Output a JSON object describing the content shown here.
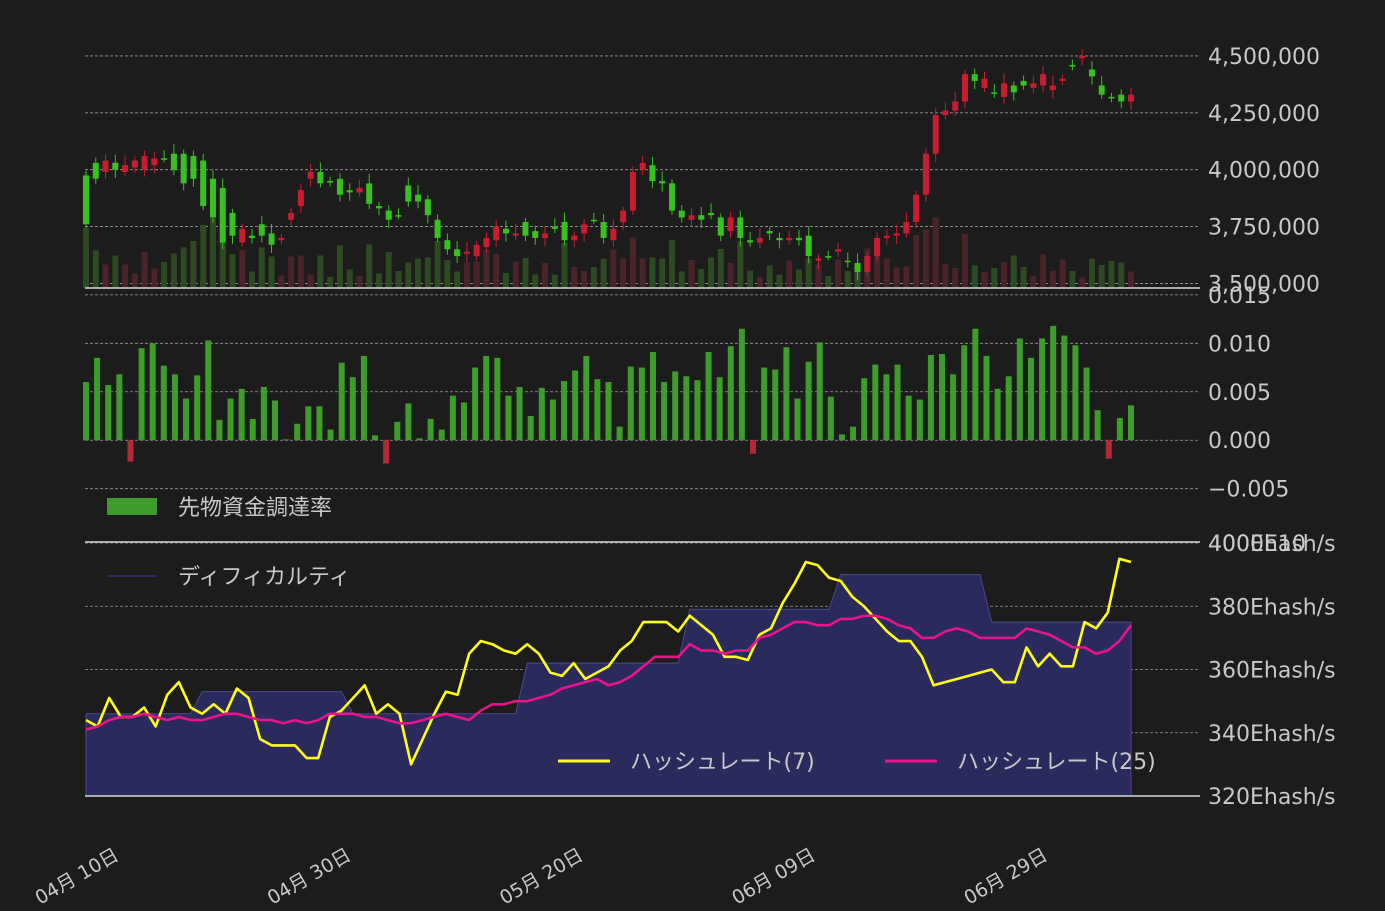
{
  "chart_data": [
    {
      "type": "candlestick",
      "panel": "price",
      "ylim": [
        3480000,
        4570000
      ],
      "yticks": [
        "3,500,000",
        "3,750,000",
        "4,000,000",
        "4,250,000",
        "4,500,000"
      ],
      "ytick_values": [
        3500000,
        3750000,
        4000000,
        4250000,
        4500000
      ],
      "series": [
        {
          "name": "price",
          "close": [
            3975000,
            4030000,
            3990000,
            4030000,
            3990000,
            4010000,
            4000000,
            4020000,
            4050000,
            4070000,
            4070000,
            4060000,
            4040000,
            3960000,
            3920000,
            3810000,
            3680000,
            3710000,
            3760000,
            3720000,
            3690000,
            3780000,
            3840000,
            3960000,
            3990000,
            3950000,
            3960000,
            3910000,
            3900000,
            3940000,
            3840000,
            3820000,
            3800000,
            3930000,
            3890000,
            3870000,
            3780000,
            3690000,
            3650000,
            3630000,
            3620000,
            3660000,
            3690000,
            3740000,
            3710000,
            3770000,
            3730000,
            3700000,
            3750000,
            3770000,
            3690000,
            3720000,
            3780000,
            3770000,
            3690000,
            3770000,
            3820000,
            4000000,
            4020000,
            3950000,
            3940000,
            3820000,
            3780000,
            3800000,
            3810000,
            3790000,
            3730000,
            3790000,
            3690000,
            3680000,
            3730000,
            3700000,
            3690000,
            3700000,
            3710000,
            3600000,
            3620000,
            3640000,
            3600000,
            3590000,
            3550000,
            3620000,
            3700000,
            3710000,
            3720000,
            3770000,
            3890000,
            4070000,
            4240000,
            4260000,
            4300000,
            4420000,
            4360000,
            4340000,
            4320000,
            4370000,
            4390000,
            4360000,
            4370000,
            4350000,
            4390000,
            4460000,
            4490000,
            4440000,
            4370000,
            4320000,
            4330000,
            4300000
          ],
          "open": [
            3760000,
            3960000,
            4040000,
            4000000,
            4020000,
            4040000,
            4060000,
            4050000,
            4050000,
            4000000,
            3940000,
            3960000,
            3840000,
            3790000,
            3680000,
            3710000,
            3740000,
            3700000,
            3710000,
            3670000,
            3700000,
            3810000,
            3910000,
            3990000,
            3940000,
            3950000,
            3890000,
            3900000,
            3920000,
            3850000,
            3830000,
            3780000,
            3800000,
            3860000,
            3860000,
            3800000,
            3700000,
            3650000,
            3620000,
            3640000,
            3670000,
            3700000,
            3750000,
            3720000,
            3720000,
            3710000,
            3700000,
            3720000,
            3740000,
            3690000,
            3710000,
            3760000,
            3780000,
            3700000,
            3740000,
            3820000,
            3990000,
            4030000,
            3950000,
            3940000,
            3820000,
            3790000,
            3800000,
            3780000,
            3800000,
            3710000,
            3790000,
            3700000,
            3680000,
            3700000,
            3720000,
            3690000,
            3700000,
            3690000,
            3620000,
            3610000,
            3620000,
            3650000,
            3600000,
            3550000,
            3620000,
            3700000,
            3710000,
            3720000,
            3770000,
            3890000,
            4070000,
            4240000,
            4260000,
            4300000,
            4420000,
            4390000,
            4400000,
            4340000,
            4380000,
            4340000,
            4370000,
            4380000,
            4420000,
            4370000,
            4400000,
            4460000,
            4500000,
            4410000,
            4330000,
            4320000,
            4300000,
            4330000
          ]
        }
      ]
    },
    {
      "type": "bar",
      "panel": "funding",
      "ylim": [
        -0.0105,
        0.0155
      ],
      "yticks": [
        "−0.005",
        "0.000",
        "0.005",
        "0.010",
        "0.015"
      ],
      "ytick_values": [
        -0.005,
        0.0,
        0.005,
        0.01,
        0.015
      ],
      "series": [
        {
          "name": "先物資金調達率",
          "color": "#3e9c2a",
          "negative_color": "#b22a3a",
          "values": [
            0.006,
            0.0085,
            0.0057,
            0.0068,
            -0.0022,
            0.0095,
            0.01,
            0.0077,
            0.0068,
            0.0043,
            0.0067,
            0.0103,
            0.0021,
            0.0043,
            0.0053,
            0.0022,
            0.0055,
            0.0041,
            0.0001,
            0.0017,
            0.0035,
            0.0035,
            0.0011,
            0.008,
            0.0065,
            0.0087,
            0.0005,
            -0.0024,
            0.0019,
            0.0038,
            0.0002,
            0.0022,
            0.0011,
            0.0046,
            0.0039,
            0.0075,
            0.0087,
            0.0085,
            0.0046,
            0.0055,
            0.0025,
            0.0054,
            0.0042,
            0.0061,
            0.0072,
            0.0087,
            0.0063,
            0.006,
            0.0014,
            0.0076,
            0.0075,
            0.0091,
            0.006,
            0.0071,
            0.0066,
            0.0062,
            0.0091,
            0.0065,
            0.0097,
            0.0115,
            -0.0014,
            0.0075,
            0.0073,
            0.0096,
            0.0043,
            0.0081,
            0.0101,
            0.0045,
            0.0006,
            0.0014,
            0.0064,
            0.0078,
            0.0068,
            0.0078,
            0.0046,
            0.0042,
            0.0088,
            0.0089,
            0.0068,
            0.0098,
            0.0115,
            0.0087,
            0.0053,
            0.0066,
            0.0105,
            0.0085,
            0.0105,
            0.0118,
            0.0108,
            0.0098,
            0.0075,
            0.0031,
            -0.0019,
            0.0023,
            0.0036
          ]
        }
      ],
      "legend": "先物資金調達率"
    },
    {
      "type": "line",
      "panel": "hashrate",
      "ylim": [
        320,
        400
      ],
      "yticks": [
        "320Ehash/s",
        "340Ehash/s",
        "360Ehash/s",
        "380Ehash/s",
        "400Ehash/s"
      ],
      "ytick_values": [
        320,
        340,
        360,
        380,
        400
      ],
      "overlapping_axis_label": "4000E10",
      "xticks": [
        "04月 10日",
        "04月 30日",
        "05月 20日",
        "06月 09日",
        "06月 29日"
      ],
      "xtick_positions": [
        0,
        20,
        40,
        60,
        80
      ],
      "x_count": 91,
      "series": [
        {
          "name": "ディフィカルティ",
          "type": "area",
          "color": "#2a2a5c",
          "values": [
            346,
            346,
            346,
            346,
            346,
            346,
            346,
            346,
            346,
            346,
            353,
            353,
            353,
            353,
            353,
            353,
            353,
            353,
            353,
            353,
            353,
            353,
            353,
            346,
            346,
            346,
            346,
            346,
            346,
            346,
            346,
            346,
            346,
            346,
            346,
            346,
            346,
            346,
            362,
            362,
            362,
            362,
            362,
            362,
            362,
            362,
            362,
            362,
            362,
            362,
            362,
            362,
            379,
            379,
            379,
            379,
            379,
            379,
            379,
            379,
            379,
            379,
            379,
            379,
            379,
            390,
            390,
            390,
            390,
            390,
            390,
            390,
            390,
            390,
            390,
            390,
            390,
            390,
            375,
            375,
            375,
            375,
            375,
            375,
            375,
            375,
            375,
            375,
            375,
            375,
            375
          ]
        },
        {
          "name": "ハッシュレート(7)",
          "color": "#ffff1a",
          "values": [
            344,
            342,
            351,
            345,
            345,
            348,
            342,
            352,
            356,
            348,
            346,
            349,
            346,
            354,
            351,
            338,
            336,
            336,
            336,
            332,
            332,
            345,
            347,
            351,
            355,
            346,
            349,
            346,
            330,
            338,
            346,
            353,
            352,
            365,
            369,
            368,
            366,
            365,
            368,
            365,
            359,
            358,
            362,
            357,
            359,
            361,
            366,
            369,
            375,
            375,
            375,
            372,
            377,
            374,
            371,
            364,
            364,
            363,
            371,
            373,
            381,
            387,
            394,
            393,
            389,
            388,
            383,
            380,
            376,
            372,
            369,
            369,
            364,
            355,
            356,
            357,
            358,
            359,
            360,
            356,
            356,
            367,
            361,
            365,
            361,
            361,
            375,
            373,
            378,
            395,
            394
          ]
        },
        {
          "name": "ハッシュレート(25)",
          "color": "#e8148a",
          "values": [
            341,
            342,
            344,
            345,
            345,
            346,
            345,
            344,
            345,
            344,
            344,
            345,
            346,
            346,
            345,
            344,
            344,
            343,
            344,
            343,
            344,
            346,
            346,
            346,
            345,
            345,
            344,
            343,
            343,
            344,
            345,
            346,
            345,
            344,
            347,
            349,
            349,
            350,
            350,
            351,
            352,
            354,
            355,
            356,
            357,
            355,
            356,
            358,
            361,
            364,
            364,
            364,
            368,
            366,
            366,
            365,
            366,
            366,
            370,
            371,
            373,
            375,
            375,
            374,
            374,
            376,
            376,
            377,
            377,
            376,
            374,
            373,
            370,
            370,
            372,
            373,
            372,
            370,
            370,
            370,
            370,
            373,
            372,
            371,
            369,
            367,
            367,
            365,
            366,
            369,
            374
          ]
        }
      ]
    }
  ]
}
